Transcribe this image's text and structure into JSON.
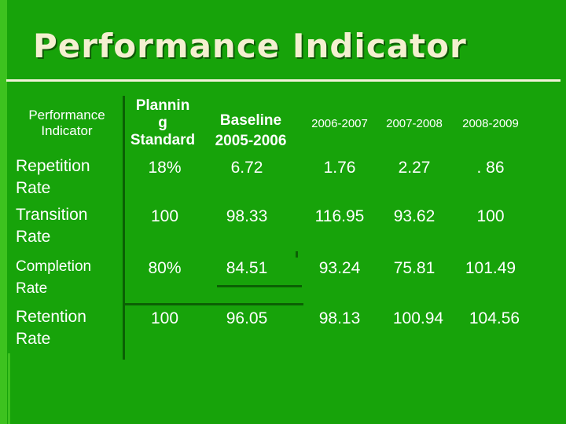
{
  "slide": {
    "title": "Performance Indicator"
  },
  "table": {
    "headers": {
      "indicator": [
        "Performance",
        "Indicator"
      ],
      "planning": [
        "Plannin",
        "g",
        "Standard"
      ],
      "baseline": [
        "Baseline",
        "2005-2006"
      ],
      "y1": "2006-2007",
      "y2": "2007-2008",
      "y3": "2008-2009"
    },
    "rows": [
      {
        "label": [
          "Repetition",
          "Rate"
        ],
        "planning": "18%",
        "baseline": "6.72",
        "y1": "1.76",
        "y2": "2.27",
        "y3": ". 86"
      },
      {
        "label": [
          "Transition",
          "Rate"
        ],
        "planning": "100",
        "baseline": "98.33",
        "y1": "116.95",
        "y2": "93.62",
        "y3": "100"
      },
      {
        "label": [
          "Completion",
          "Rate"
        ],
        "planning": "80%",
        "baseline": "84.51",
        "y1": "93.24",
        "y2": "75.81",
        "y3": "101.49"
      },
      {
        "label": [
          "Retention",
          "Rate"
        ],
        "planning": "100",
        "baseline": "96.05",
        "y1": "98.13",
        "y2": "100.94",
        "y3": "104.56"
      }
    ]
  }
}
